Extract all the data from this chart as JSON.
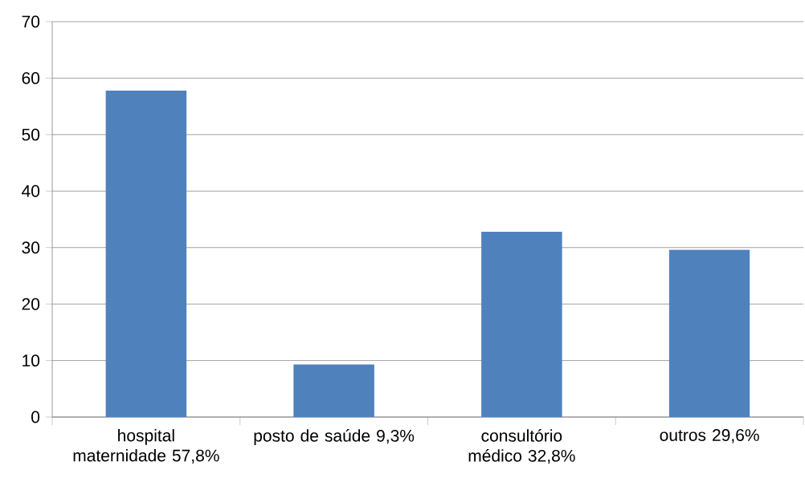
{
  "chart_data": {
    "type": "bar",
    "categories": [
      "hospital maternidade 57,8%",
      "posto de saúde 9,3%",
      "consultório médico 32,8%",
      "outros 29,6%"
    ],
    "values": [
      57.8,
      9.3,
      32.8,
      29.6
    ],
    "color": "#4f81bd",
    "ylim": [
      0,
      70
    ],
    "yticks": [
      0,
      10,
      20,
      30,
      40,
      50,
      60,
      70
    ],
    "grid": "y"
  }
}
